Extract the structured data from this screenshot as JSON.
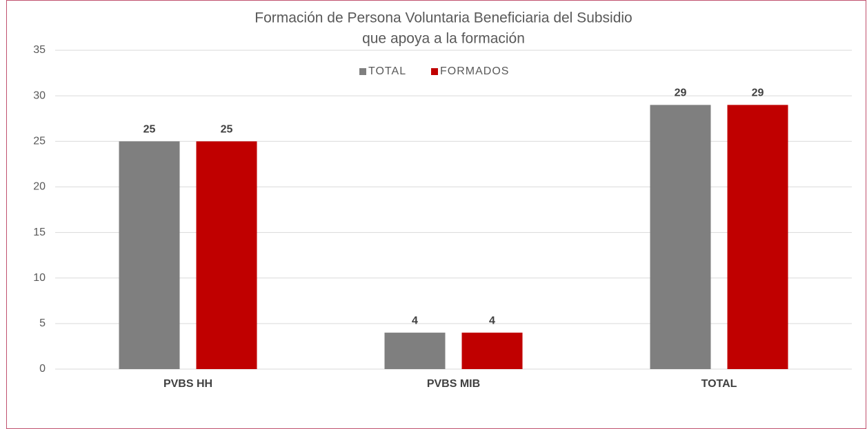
{
  "chart_data": {
    "type": "bar",
    "title": [
      "Formación de Persona Voluntaria Beneficiaria del Subsidio",
      "que apoya a la formación"
    ],
    "categories": [
      "PVBS HH",
      "PVBS MIB",
      "TOTAL"
    ],
    "series": [
      {
        "name": "TOTAL",
        "color": "#7f7f7f",
        "values": [
          25,
          4,
          29
        ]
      },
      {
        "name": "FORMADOS",
        "color": "#c00000",
        "values": [
          25,
          4,
          29
        ]
      }
    ],
    "ylim": [
      0,
      35
    ],
    "yticks": [
      0,
      5,
      10,
      15,
      20,
      25,
      30,
      35
    ],
    "grid": true,
    "legend": "top"
  }
}
